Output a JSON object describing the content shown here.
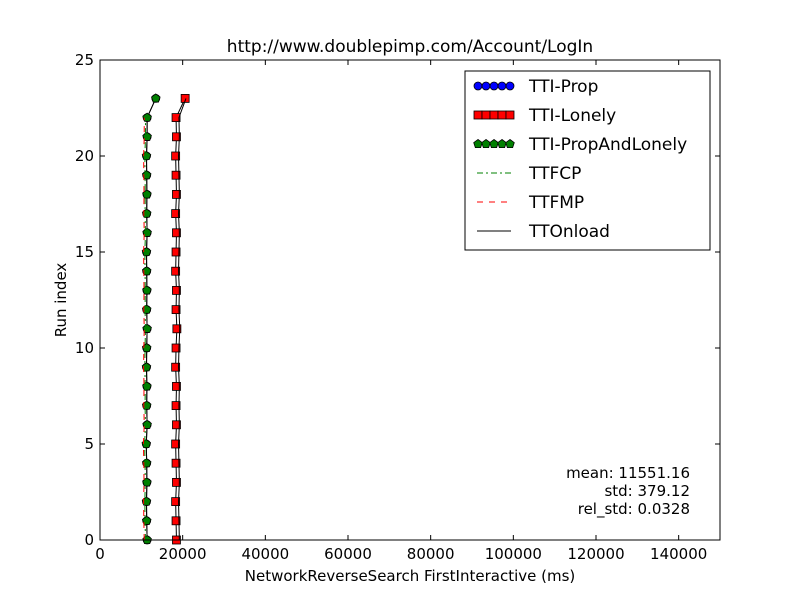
{
  "chart_data": {
    "type": "line",
    "title": "http://www.doublepimp.com/Account/LogIn",
    "xlabel": "NetworkReverseSearch FirstInteractive (ms)",
    "ylabel": "Run index",
    "xlim": [
      0,
      150000
    ],
    "ylim": [
      0,
      25
    ],
    "xticks": [
      0,
      20000,
      40000,
      60000,
      80000,
      100000,
      120000,
      140000
    ],
    "yticks": [
      0,
      5,
      10,
      15,
      20,
      25
    ],
    "grid": false,
    "legend_position": "top-right",
    "stats": [
      "mean: 11551.16",
      "std: 379.12",
      "rel_std: 0.0328"
    ],
    "series": [
      {
        "name": "TTI-Prop",
        "style": "circle-markers",
        "color": "#0000ff",
        "x": [
          11400,
          11300,
          11250,
          11350,
          11300,
          11200,
          11400,
          11300,
          11350,
          11250,
          11300,
          11400,
          11300,
          11350,
          11300,
          11250,
          11400,
          11300,
          11350,
          11300,
          11250,
          11400,
          11400,
          13500
        ],
        "y": [
          0,
          1,
          2,
          3,
          4,
          5,
          6,
          7,
          8,
          9,
          10,
          11,
          12,
          13,
          14,
          15,
          16,
          17,
          18,
          19,
          20,
          21,
          22,
          23
        ]
      },
      {
        "name": "TTI-Lonely",
        "style": "square-markers",
        "color": "#ff0000",
        "x": [
          18500,
          18400,
          18300,
          18500,
          18400,
          18300,
          18500,
          18400,
          18500,
          18300,
          18400,
          18600,
          18400,
          18500,
          18300,
          18400,
          18500,
          18300,
          18500,
          18400,
          18300,
          18500,
          18400,
          20600
        ],
        "y": [
          0,
          1,
          2,
          3,
          4,
          5,
          6,
          7,
          8,
          9,
          10,
          11,
          12,
          13,
          14,
          15,
          16,
          17,
          18,
          19,
          20,
          21,
          22,
          23
        ]
      },
      {
        "name": "TTI-PropAndLonely",
        "style": "pentagon-markers",
        "color": "#008000",
        "x": [
          11400,
          11300,
          11250,
          11350,
          11300,
          11200,
          11400,
          11300,
          11350,
          11250,
          11300,
          11400,
          11300,
          11350,
          11300,
          11250,
          11400,
          11300,
          11350,
          11300,
          11250,
          11400,
          11400,
          13500
        ],
        "y": [
          0,
          1,
          2,
          3,
          4,
          5,
          6,
          7,
          8,
          9,
          10,
          11,
          12,
          13,
          14,
          15,
          16,
          17,
          18,
          19,
          20,
          21,
          22,
          23
        ]
      },
      {
        "name": "TTFCP",
        "style": "dash-dot",
        "color": "#008000",
        "x": [
          11000,
          10900,
          10850,
          10950,
          10900,
          10800,
          11000,
          10900,
          10950,
          10850,
          10900,
          11000,
          10900,
          10950,
          10900,
          10850,
          11000,
          10900,
          10950,
          10900,
          10850,
          11000,
          11000
        ],
        "y": [
          0,
          1,
          2,
          3,
          4,
          5,
          6,
          7,
          8,
          9,
          10,
          11,
          12,
          13,
          14,
          15,
          16,
          17,
          18,
          19,
          20,
          21,
          22
        ]
      },
      {
        "name": "TTFMP",
        "style": "dashed",
        "color": "#ff0000",
        "x": [
          10700,
          10600,
          10550,
          10650,
          10600,
          10500,
          10700,
          10600,
          10650,
          10550,
          10600,
          10700,
          10600,
          10650,
          10600,
          10550,
          10700,
          10600,
          10650,
          10600,
          10550,
          10700,
          10700
        ],
        "y": [
          0,
          1,
          2,
          3,
          4,
          5,
          6,
          7,
          8,
          9,
          10,
          11,
          12,
          13,
          14,
          15,
          16,
          17,
          18,
          19,
          20,
          21,
          22
        ]
      },
      {
        "name": "TTOnload",
        "style": "solid",
        "color": "#000000",
        "x": [
          19200,
          19100,
          19000,
          19200,
          19100,
          19000,
          19200,
          19100,
          19200,
          19000,
          19100,
          19300,
          19100,
          19200,
          19000,
          19100,
          19200,
          19000,
          19200,
          19100,
          19000,
          19200,
          19100,
          20800
        ],
        "y": [
          0,
          1,
          2,
          3,
          4,
          5,
          6,
          7,
          8,
          9,
          10,
          11,
          12,
          13,
          14,
          15,
          16,
          17,
          18,
          19,
          20,
          21,
          22,
          23
        ]
      }
    ]
  }
}
